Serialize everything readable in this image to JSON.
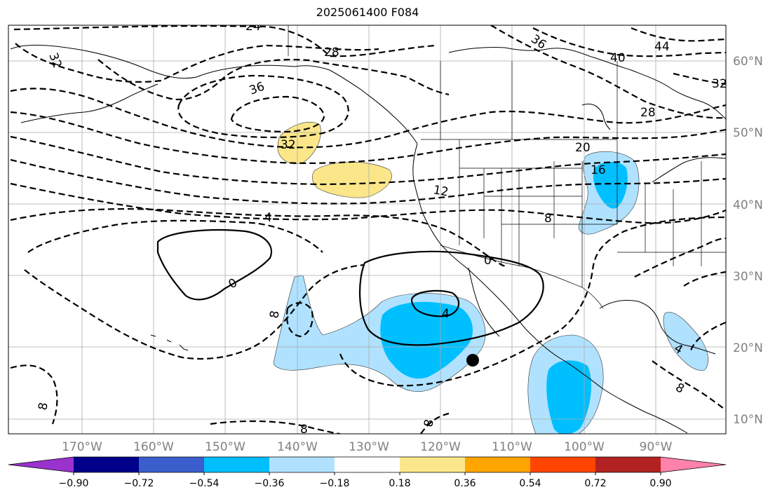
{
  "title": "2025061400 F084",
  "axes": {
    "lon_labels": [
      "170°W",
      "160°W",
      "150°W",
      "140°W",
      "130°W",
      "120°W",
      "110°W",
      "100°W",
      "90°W"
    ],
    "lat_labels": [
      "10°N",
      "20°N",
      "30°N",
      "40°N",
      "50°N",
      "60°N"
    ],
    "tick_color": "#808080"
  },
  "contour_labels": [
    "24",
    "32",
    "28",
    "36",
    "36",
    "40",
    "44",
    "32",
    "28",
    "32",
    "20",
    "16",
    "12",
    "4",
    "8",
    "0",
    "0",
    "4",
    "8",
    "4",
    "8",
    "8",
    "8"
  ],
  "colorbar": {
    "tick_labels": [
      "−0.90",
      "−0.72",
      "−0.54",
      "−0.36",
      "−0.18",
      "0.18",
      "0.36",
      "0.54",
      "0.72",
      "0.90"
    ],
    "colors": [
      "#9a32cd",
      "#00008b",
      "#3a5fcd",
      "#00bfff",
      "#b0e2ff",
      "#ffffff",
      "#fbe78a",
      "#ffa500",
      "#ff4500",
      "#b22222",
      "#ff82ab"
    ]
  }
}
